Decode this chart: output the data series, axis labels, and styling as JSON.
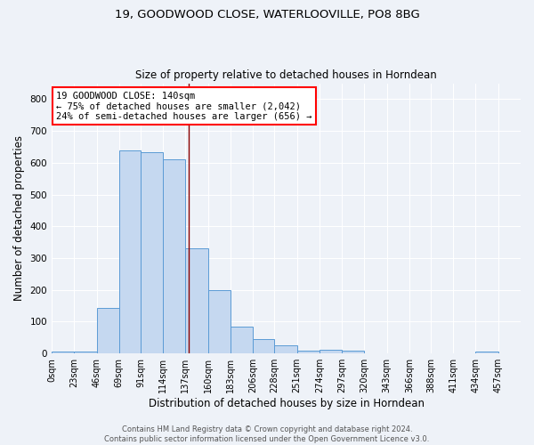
{
  "title1": "19, GOODWOOD CLOSE, WATERLOOVILLE, PO8 8BG",
  "title2": "Size of property relative to detached houses in Horndean",
  "xlabel": "Distribution of detached houses by size in Horndean",
  "ylabel": "Number of detached properties",
  "footer1": "Contains HM Land Registry data © Crown copyright and database right 2024.",
  "footer2": "Contains public sector information licensed under the Open Government Licence v3.0.",
  "annotation_line1": "19 GOODWOOD CLOSE: 140sqm",
  "annotation_line2": "← 75% of detached houses are smaller (2,042)",
  "annotation_line3": "24% of semi-detached houses are larger (656) →",
  "property_size": 140,
  "bar_edges": [
    0,
    23,
    46,
    69,
    91,
    114,
    137,
    160,
    183,
    206,
    228,
    251,
    274,
    297,
    320,
    343,
    366,
    388,
    411,
    434,
    457
  ],
  "bar_heights": [
    5,
    5,
    142,
    638,
    632,
    612,
    332,
    200,
    85,
    46,
    27,
    10,
    12,
    8,
    0,
    0,
    0,
    0,
    0,
    5
  ],
  "bar_color": "#c5d8f0",
  "bar_edge_color": "#5b9bd5",
  "marker_line_color": "#8b0000",
  "background_color": "#eef2f8",
  "grid_color": "#ffffff",
  "ylim": [
    0,
    850
  ],
  "yticks": [
    0,
    100,
    200,
    300,
    400,
    500,
    600,
    700,
    800
  ],
  "tick_labels": [
    "0sqm",
    "23sqm",
    "46sqm",
    "69sqm",
    "91sqm",
    "114sqm",
    "137sqm",
    "160sqm",
    "183sqm",
    "206sqm",
    "228sqm",
    "251sqm",
    "274sqm",
    "297sqm",
    "320sqm",
    "343sqm",
    "366sqm",
    "388sqm",
    "411sqm",
    "434sqm",
    "457sqm"
  ],
  "title1_fontsize": 9.5,
  "title2_fontsize": 8.5,
  "xlabel_fontsize": 8.5,
  "ylabel_fontsize": 8.5,
  "tick_fontsize": 7,
  "ytick_fontsize": 7.5,
  "footer_fontsize": 6,
  "annotation_fontsize": 7.5
}
